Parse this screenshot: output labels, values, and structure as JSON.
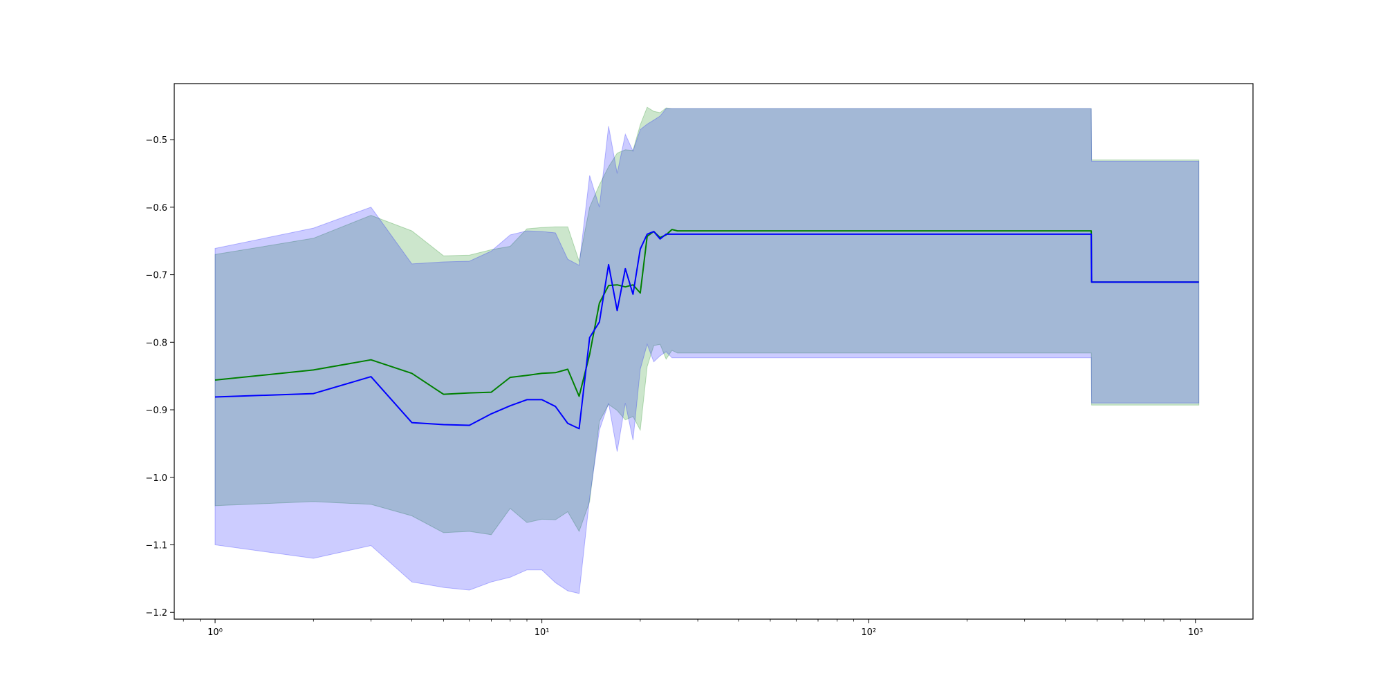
{
  "chart_data": {
    "type": "line",
    "title": "",
    "xlabel": "",
    "ylabel": "",
    "x_scale": "log",
    "xlim": [
      0.75,
      1500
    ],
    "ylim": [
      -1.21,
      -0.417
    ],
    "grid": false,
    "x_ticks": [
      {
        "value": 1,
        "label": "10⁰"
      },
      {
        "value": 10,
        "label": "10¹"
      },
      {
        "value": 100,
        "label": "10²"
      },
      {
        "value": 1000,
        "label": "10³"
      }
    ],
    "y_ticks": [
      {
        "value": -0.5,
        "label": "−0.5"
      },
      {
        "value": -0.6,
        "label": "−0.6"
      },
      {
        "value": -0.7,
        "label": "−0.7"
      },
      {
        "value": -0.8,
        "label": "−0.8"
      },
      {
        "value": -0.9,
        "label": "−0.9"
      },
      {
        "value": -1.0,
        "label": "−1.0"
      },
      {
        "value": -1.1,
        "label": "−1.1"
      },
      {
        "value": -1.2,
        "label": "−1.2"
      }
    ],
    "x": [
      1,
      2,
      3,
      4,
      5,
      6,
      7,
      8,
      9,
      10,
      11,
      12,
      13,
      14,
      15,
      16,
      17,
      18,
      19,
      20,
      21,
      22,
      23,
      24,
      25,
      26,
      480,
      481,
      1024
    ],
    "series": [
      {
        "color": "#008000",
        "band_color": "#008000",
        "band_opacity": 0.2,
        "mean": [
          -0.856,
          -0.841,
          -0.826,
          -0.846,
          -0.877,
          -0.875,
          -0.874,
          -0.852,
          -0.849,
          -0.846,
          -0.845,
          -0.84,
          -0.88,
          -0.818,
          -0.742,
          -0.716,
          -0.715,
          -0.718,
          -0.715,
          -0.727,
          -0.643,
          -0.636,
          -0.645,
          -0.641,
          -0.633,
          -0.635,
          -0.635,
          -0.711,
          -0.711
        ],
        "upper": [
          -0.67,
          -0.646,
          -0.612,
          -0.635,
          -0.672,
          -0.671,
          -0.663,
          -0.658,
          -0.632,
          -0.63,
          -0.629,
          -0.629,
          -0.68,
          -0.6,
          -0.567,
          -0.54,
          -0.52,
          -0.515,
          -0.516,
          -0.478,
          -0.452,
          -0.458,
          -0.46,
          -0.453,
          -0.454,
          -0.454,
          -0.454,
          -0.53,
          -0.53
        ],
        "lower": [
          -1.042,
          -1.036,
          -1.04,
          -1.057,
          -1.082,
          -1.08,
          -1.085,
          -1.046,
          -1.067,
          -1.062,
          -1.063,
          -1.051,
          -1.08,
          -1.036,
          -0.917,
          -0.892,
          -0.901,
          -0.915,
          -0.91,
          -0.93,
          -0.836,
          -0.805,
          -0.803,
          -0.825,
          -0.812,
          -0.816,
          -0.816,
          -0.893,
          -0.893
        ]
      },
      {
        "color": "#0000ff",
        "band_color": "#0000ff",
        "band_opacity": 0.2,
        "mean": [
          -0.881,
          -0.876,
          -0.851,
          -0.919,
          -0.922,
          -0.923,
          -0.906,
          -0.894,
          -0.885,
          -0.885,
          -0.895,
          -0.92,
          -0.928,
          -0.793,
          -0.77,
          -0.685,
          -0.753,
          -0.691,
          -0.729,
          -0.662,
          -0.64,
          -0.636,
          -0.647,
          -0.64,
          -0.64,
          -0.64,
          -0.64,
          -0.711,
          -0.711
        ],
        "upper": [
          -0.661,
          -0.631,
          -0.6,
          -0.684,
          -0.681,
          -0.68,
          -0.665,
          -0.641,
          -0.635,
          -0.636,
          -0.638,
          -0.677,
          -0.686,
          -0.553,
          -0.6,
          -0.48,
          -0.55,
          -0.492,
          -0.517,
          -0.485,
          -0.477,
          -0.471,
          -0.465,
          -0.454,
          -0.454,
          -0.454,
          -0.454,
          -0.532,
          -0.532
        ],
        "lower": [
          -1.1,
          -1.12,
          -1.101,
          -1.155,
          -1.163,
          -1.167,
          -1.155,
          -1.148,
          -1.137,
          -1.137,
          -1.156,
          -1.168,
          -1.172,
          -1.03,
          -0.93,
          -0.89,
          -0.962,
          -0.89,
          -0.945,
          -0.84,
          -0.803,
          -0.829,
          -0.82,
          -0.814,
          -0.823,
          -0.823,
          -0.823,
          -0.89,
          -0.89
        ]
      }
    ]
  }
}
